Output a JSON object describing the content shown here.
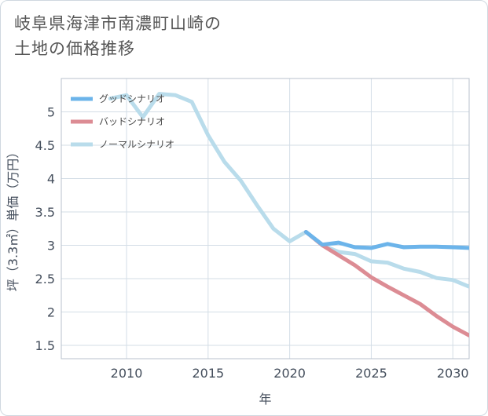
{
  "title_lines": [
    "岐阜県海津市南濃町山崎の",
    "土地の価格推移"
  ],
  "chart_data": {
    "type": "line",
    "title": "岐阜県海津市南濃町山崎の土地の価格推移",
    "xlabel": "年",
    "ylabel": "坪（3.3㎡）単価（万円）",
    "xlim": [
      2006,
      2031
    ],
    "ylim": [
      1.3,
      5.5
    ],
    "xticks": [
      2010,
      2015,
      2020,
      2025,
      2030
    ],
    "yticks": [
      1.5,
      2,
      2.5,
      3,
      3.5,
      4,
      4.5,
      5
    ],
    "ytick_labels": [
      "1.5",
      "2",
      "2.5",
      "3",
      "3.5",
      "4",
      "4.5",
      "5"
    ],
    "xtick_labels": [
      "2010",
      "2015",
      "2020",
      "2025",
      "2030"
    ],
    "grid": true,
    "legend_position": "top-left",
    "series": [
      {
        "name": "グッドシナリオ",
        "color": "#6cb4ea",
        "x": [
          2021,
          2022,
          2023,
          2024,
          2025,
          2026,
          2027,
          2028,
          2029,
          2030,
          2031
        ],
        "values": [
          3.2,
          3.01,
          3.04,
          2.97,
          2.96,
          3.02,
          2.97,
          2.98,
          2.98,
          2.97,
          2.96
        ]
      },
      {
        "name": "バッドシナリオ",
        "color": "#dc8c94",
        "x": [
          2021,
          2022,
          2023,
          2024,
          2025,
          2026,
          2027,
          2028,
          2029,
          2030,
          2031
        ],
        "values": [
          3.2,
          3.0,
          2.85,
          2.7,
          2.52,
          2.38,
          2.25,
          2.12,
          1.94,
          1.78,
          1.65
        ]
      },
      {
        "name": "ノーマルシナリオ",
        "color": "#b9dceb",
        "x": [
          2009,
          2010,
          2011,
          2012,
          2013,
          2014,
          2015,
          2016,
          2017,
          2018,
          2019,
          2020,
          2021,
          2022,
          2023,
          2024,
          2025,
          2026,
          2027,
          2028,
          2029,
          2030,
          2031
        ],
        "values": [
          5.2,
          5.25,
          4.92,
          5.27,
          5.25,
          5.15,
          4.65,
          4.25,
          3.97,
          3.6,
          3.25,
          3.06,
          3.2,
          3.0,
          2.9,
          2.87,
          2.76,
          2.74,
          2.65,
          2.6,
          2.51,
          2.48,
          2.38
        ]
      }
    ]
  }
}
